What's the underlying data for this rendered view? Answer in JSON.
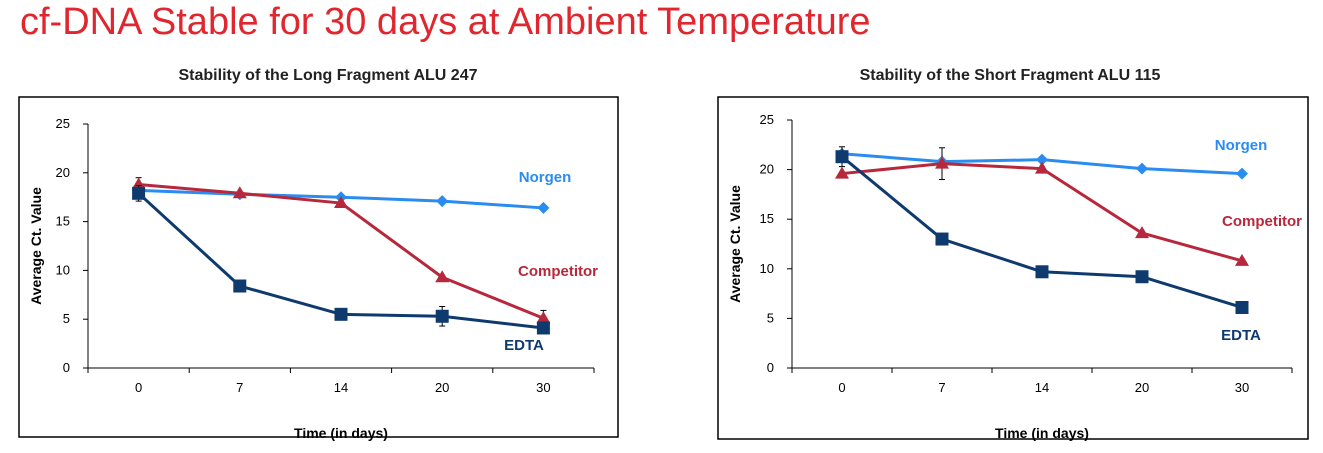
{
  "page": {
    "title": "cf-DNA Stable for 30 days at Ambient Temperature"
  },
  "chart_data": [
    {
      "type": "line",
      "title": "Stability of the Long Fragment ALU 247",
      "xlabel": "Time (in days)",
      "ylabel": "Average Ct. Value",
      "categories": [
        "0",
        "7",
        "14",
        "20",
        "30"
      ],
      "ylim": [
        0,
        25
      ],
      "yticks": [
        0,
        5,
        10,
        15,
        20,
        25
      ],
      "grid": false,
      "legend": "inline labels near lines",
      "series": [
        {
          "name": "Norgen",
          "color": "#2b8cef",
          "marker": "diamond",
          "values": [
            18.2,
            17.8,
            17.5,
            17.1,
            16.4
          ],
          "errors": [
            0,
            0,
            0,
            0,
            0
          ]
        },
        {
          "name": "Competitor",
          "color": "#b8283c",
          "marker": "triangle",
          "values": [
            18.8,
            17.9,
            16.9,
            9.3,
            5.1
          ],
          "errors": [
            0.7,
            0,
            0,
            0,
            0.8
          ]
        },
        {
          "name": "EDTA",
          "color": "#0f3a6e",
          "marker": "square",
          "values": [
            17.9,
            8.4,
            5.5,
            5.3,
            4.1
          ],
          "errors": [
            0.8,
            0,
            0,
            1.0,
            0
          ]
        }
      ]
    },
    {
      "type": "line",
      "title": "Stability of the Short Fragment ALU 115",
      "xlabel": "Time (in days)",
      "ylabel": "Average Ct. Value",
      "categories": [
        "0",
        "7",
        "14",
        "20",
        "30"
      ],
      "ylim": [
        0,
        25
      ],
      "yticks": [
        0,
        5,
        10,
        15,
        20,
        25
      ],
      "grid": false,
      "legend": "inline labels near lines",
      "series": [
        {
          "name": "Norgen",
          "color": "#2b8cef",
          "marker": "diamond",
          "values": [
            21.6,
            20.8,
            21.0,
            20.1,
            19.6
          ],
          "errors": [
            0,
            0,
            0,
            0,
            0
          ]
        },
        {
          "name": "Competitor",
          "color": "#b8283c",
          "marker": "triangle",
          "values": [
            19.6,
            20.6,
            20.1,
            13.6,
            10.8
          ],
          "errors": [
            0,
            1.6,
            0,
            0,
            0
          ]
        },
        {
          "name": "EDTA",
          "color": "#0f3a6e",
          "marker": "square",
          "values": [
            21.3,
            13.0,
            9.7,
            9.2,
            6.1
          ],
          "errors": [
            1.0,
            0,
            0,
            0,
            0
          ]
        }
      ]
    }
  ]
}
